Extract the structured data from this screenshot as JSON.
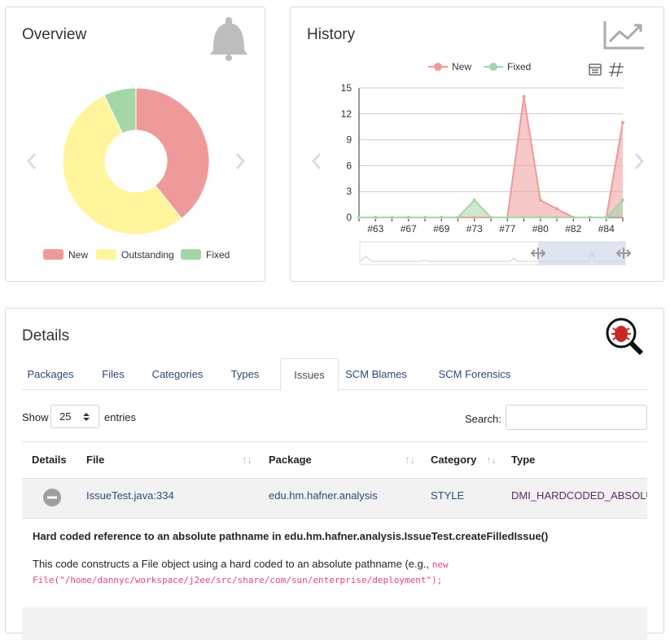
{
  "chart_data": [
    {
      "type": "pie",
      "title": "Overview",
      "donut": true,
      "legend": "bottom",
      "categories": [
        "New",
        "Outstanding",
        "Fixed"
      ],
      "values": [
        11,
        15,
        2
      ],
      "colors": [
        "#ef9a9a",
        "#fff59d",
        "#a5d6a7"
      ]
    },
    {
      "type": "line",
      "title": "History",
      "area": true,
      "grid": true,
      "legend": "top",
      "categories": [
        null,
        "#63",
        null,
        "#67",
        null,
        "#69",
        null,
        "#73",
        null,
        "#77",
        null,
        "#80",
        null,
        "#82",
        null,
        "#84",
        null
      ],
      "series": [
        {
          "name": "New",
          "color": "#ef9a9a",
          "values": [
            0,
            0,
            0,
            0,
            0,
            0,
            0,
            0,
            0,
            0,
            14,
            2,
            1,
            0,
            0,
            0,
            11
          ]
        },
        {
          "name": "Fixed",
          "color": "#a5d6a7",
          "values": [
            0,
            0,
            0,
            0,
            0,
            0,
            0,
            2,
            0,
            0,
            0,
            0,
            0,
            0,
            0,
            0,
            2
          ]
        }
      ],
      "ylim": [
        0,
        15
      ],
      "yticks": [
        0,
        3,
        6,
        9,
        12,
        15
      ]
    }
  ],
  "details": {
    "title": "Details",
    "tabs": [
      "Packages",
      "Files",
      "Categories",
      "Types",
      "Issues",
      "SCM Blames",
      "SCM Forensics"
    ],
    "active_tab": 4,
    "show_label": "Show",
    "page_length": "25",
    "entries_label": "entries",
    "search_label": "Search:",
    "columns": [
      "Details",
      "File",
      "Package",
      "Category",
      "Type"
    ],
    "rows": [
      [
        "IssueTest.java:334",
        "edu.hm.hafner.analysis",
        "STYLE",
        "DMI_HARDCODED_ABSOLUTE_FILENAME"
      ]
    ],
    "issue_title": "Hard coded reference to an absolute pathname in edu.hm.hafner.analysis.IssueTest.createFilledIssue()",
    "issue_text": "This code constructs a File object using a hard coded to an absolute pathname (e.g.,",
    "issue_code": "new File(\"/home/dannyc/workspace/j2ee/src/share/com/sun/enterprise/deployment\");"
  }
}
